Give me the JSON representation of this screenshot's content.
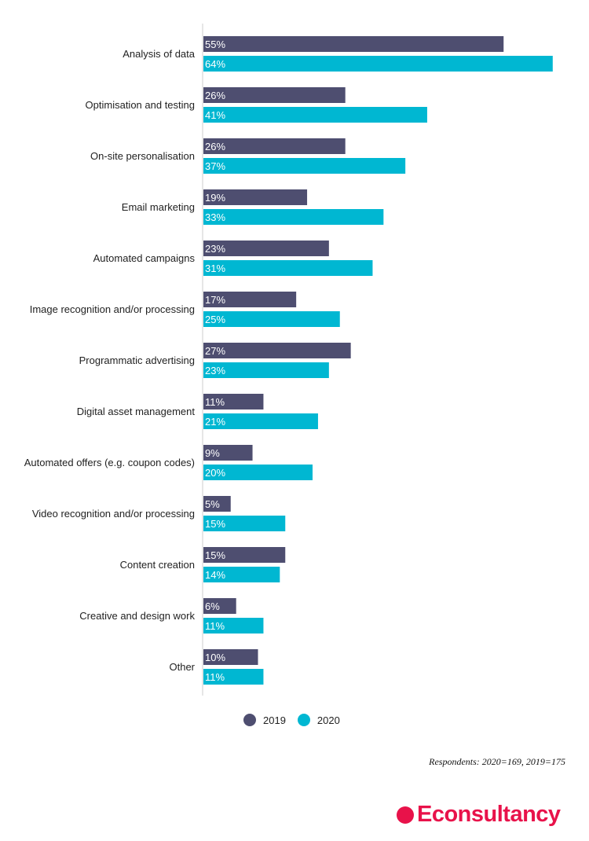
{
  "chart_data": {
    "type": "bar",
    "orientation": "horizontal",
    "categories": [
      "Analysis of data",
      "Optimisation and testing",
      "On-site personalisation",
      "Email marketing",
      "Automated campaigns",
      "Image recognition and/or processing",
      "Programmatic advertising",
      "Digital asset management",
      "Automated offers (e.g. coupon codes)",
      "Video recognition and/or processing",
      "Content creation",
      "Creative and design work",
      "Other"
    ],
    "series": [
      {
        "name": "2019",
        "color": "#4e4e70",
        "values": [
          55,
          26,
          26,
          19,
          23,
          17,
          27,
          11,
          9,
          5,
          15,
          6,
          10
        ]
      },
      {
        "name": "2020",
        "color": "#00b7d2",
        "values": [
          64,
          41,
          37,
          33,
          31,
          25,
          23,
          21,
          20,
          15,
          14,
          11,
          11
        ]
      }
    ],
    "value_suffix": "%",
    "xlim": [
      0,
      64
    ],
    "grid": false,
    "legend_position": "bottom"
  },
  "footnote": "Respondents: 2020=169, 2019=175",
  "logo_text": "Econsultancy"
}
